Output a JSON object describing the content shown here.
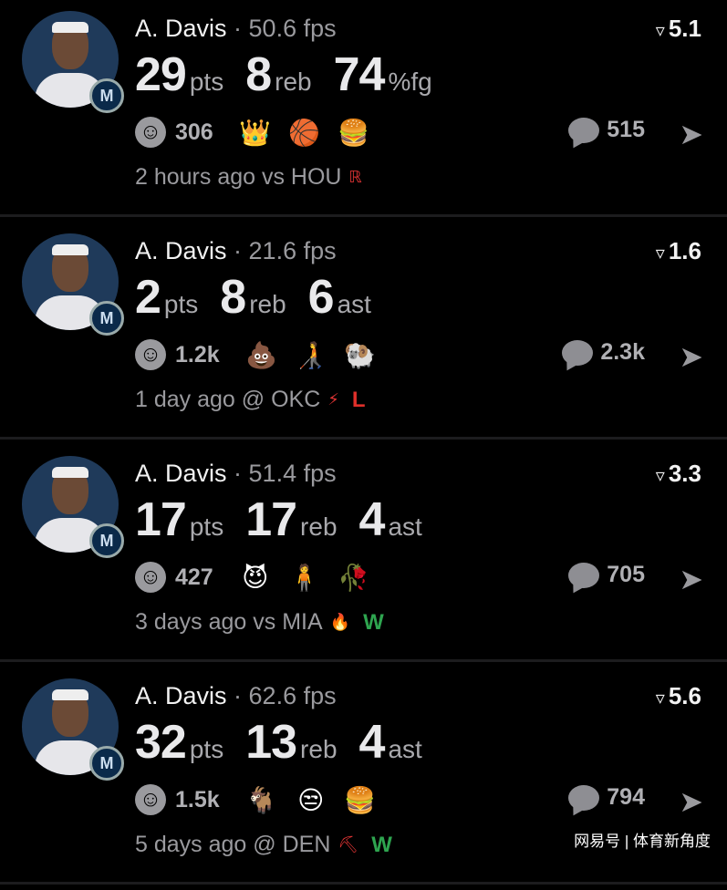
{
  "colors": {
    "background": "#000000",
    "win": "#2ea44f",
    "loss": "#e0302a"
  },
  "posts": [
    {
      "player": "A. Davis",
      "fps": "50.6 fps",
      "score": "5.1",
      "stats": [
        {
          "value": "29",
          "unit": "pts"
        },
        {
          "value": "8",
          "unit": "reb"
        },
        {
          "value": "74",
          "unit": "%fg"
        }
      ],
      "reactions_count": "306",
      "emojis": [
        "👑",
        "🏀",
        "🍔"
      ],
      "comments": "515",
      "meta": "2 hours ago vs HOU",
      "team_logo": "rockets-logo",
      "logo_glyph": "ℝ",
      "result": ""
    },
    {
      "player": "A. Davis",
      "fps": "21.6 fps",
      "score": "1.6",
      "stats": [
        {
          "value": "2",
          "unit": "pts"
        },
        {
          "value": "8",
          "unit": "reb"
        },
        {
          "value": "6",
          "unit": "ast"
        }
      ],
      "reactions_count": "1.2k",
      "emojis": [
        "💩",
        "🧑‍🦯",
        "🐏"
      ],
      "comments": "2.3k",
      "meta": "1 day ago @ OKC",
      "team_logo": "thunder-logo",
      "logo_glyph": "⚡",
      "result": "L"
    },
    {
      "player": "A. Davis",
      "fps": "51.4 fps",
      "score": "3.3",
      "stats": [
        {
          "value": "17",
          "unit": "pts"
        },
        {
          "value": "17",
          "unit": "reb"
        },
        {
          "value": "4",
          "unit": "ast"
        }
      ],
      "reactions_count": "427",
      "emojis": [
        "😈",
        "🧍",
        "🥀"
      ],
      "comments": "705",
      "meta": "3 days ago vs MIA",
      "team_logo": "heat-logo",
      "logo_glyph": "🔥",
      "result": "W"
    },
    {
      "player": "A. Davis",
      "fps": "62.6 fps",
      "score": "5.6",
      "stats": [
        {
          "value": "32",
          "unit": "pts"
        },
        {
          "value": "13",
          "unit": "reb"
        },
        {
          "value": "4",
          "unit": "ast"
        }
      ],
      "reactions_count": "1.5k",
      "emojis": [
        "🐐",
        "😒",
        "🍔"
      ],
      "comments": "794",
      "meta": "5 days ago @ DEN",
      "team_logo": "nuggets-logo",
      "logo_glyph": "⛏",
      "result": "W"
    }
  ],
  "watermark": "网易号 | 体育新角度"
}
